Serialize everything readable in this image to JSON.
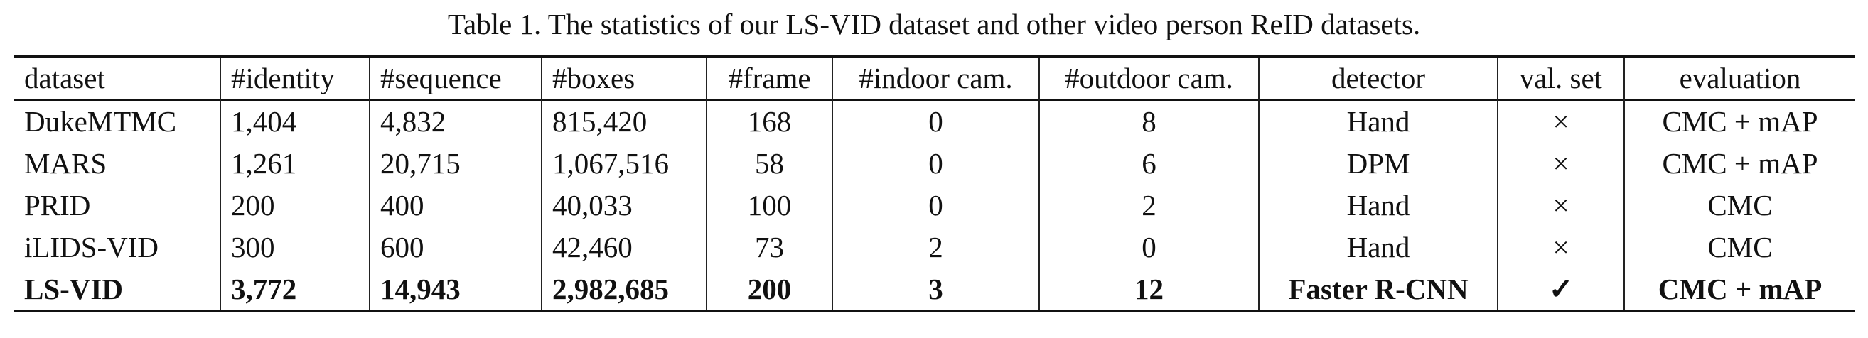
{
  "caption": "Table 1. The statistics of our LS-VID dataset and other video person ReID datasets.",
  "columns": [
    "dataset",
    "#identity",
    "#sequence",
    "#boxes",
    "#frame",
    "#indoor cam.",
    "#outdoor cam.",
    "detector",
    "val. set",
    "evaluation"
  ],
  "rows": [
    [
      "DukeMTMC",
      "1,404",
      "4,832",
      "815,420",
      "168",
      "0",
      "8",
      "Hand",
      "×",
      "CMC + mAP"
    ],
    [
      "MARS",
      "1,261",
      "20,715",
      "1,067,516",
      "58",
      "0",
      "6",
      "DPM",
      "×",
      "CMC + mAP"
    ],
    [
      "PRID",
      "200",
      "400",
      "40,033",
      "100",
      "0",
      "2",
      "Hand",
      "×",
      "CMC"
    ],
    [
      "iLIDS-VID",
      "300",
      "600",
      "42,460",
      "73",
      "2",
      "0",
      "Hand",
      "×",
      "CMC"
    ],
    [
      "LS-VID",
      "3,772",
      "14,943",
      "2,982,685",
      "200",
      "3",
      "12",
      "Faster R-CNN",
      "✓",
      "CMC + mAP"
    ]
  ]
}
